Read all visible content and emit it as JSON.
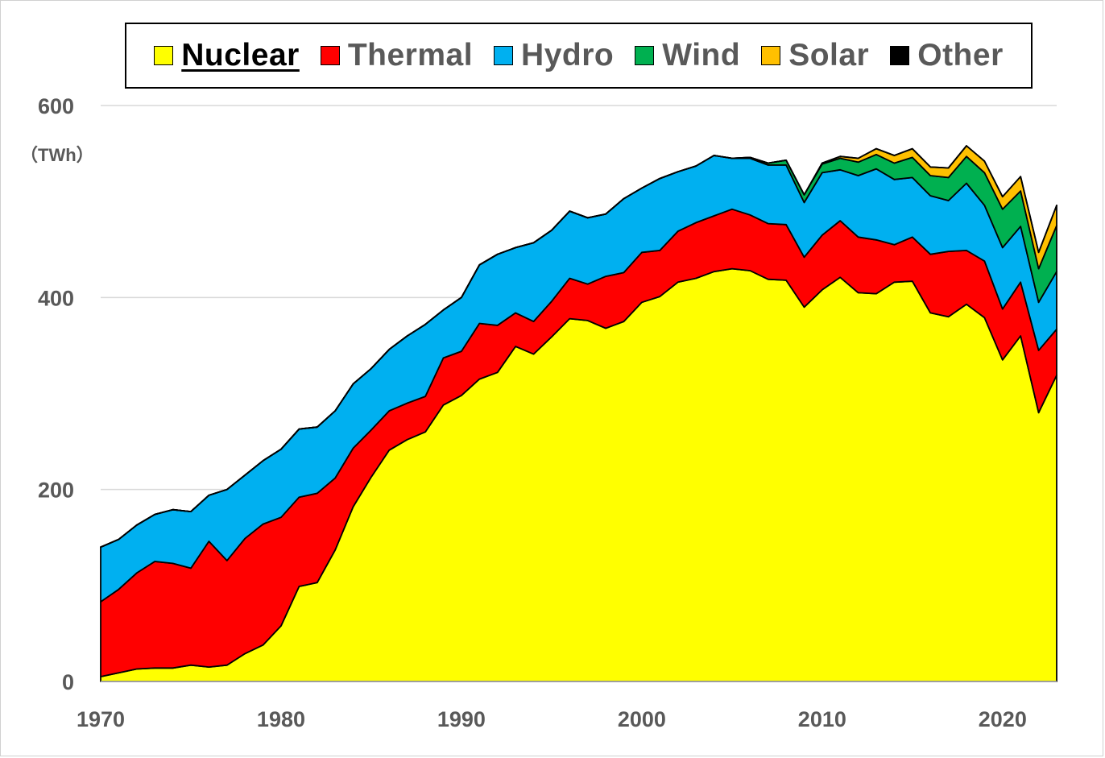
{
  "chart_data": {
    "type": "area",
    "stacked": true,
    "unit_label": "（TWh）",
    "ylim": [
      0,
      600
    ],
    "yticks": [
      0,
      200,
      400,
      600
    ],
    "xlim": [
      1970,
      2023
    ],
    "xticks": [
      1970,
      1980,
      1990,
      2000,
      2010,
      2020
    ],
    "grid": "horizontal",
    "legend_position": "top",
    "legend_active": "Nuclear",
    "x": [
      1970,
      1971,
      1972,
      1973,
      1974,
      1975,
      1976,
      1977,
      1978,
      1979,
      1980,
      1981,
      1982,
      1983,
      1984,
      1985,
      1986,
      1987,
      1988,
      1989,
      1990,
      1991,
      1992,
      1993,
      1994,
      1995,
      1996,
      1997,
      1998,
      1999,
      2000,
      2001,
      2002,
      2003,
      2004,
      2005,
      2006,
      2007,
      2008,
      2009,
      2010,
      2011,
      2012,
      2013,
      2014,
      2015,
      2016,
      2017,
      2018,
      2019,
      2020,
      2021,
      2022,
      2023
    ],
    "series": [
      {
        "name": "Nuclear",
        "color": "#FFFF00",
        "values": [
          5,
          9,
          13,
          14,
          14,
          17,
          15,
          17,
          29,
          38,
          58,
          99,
          103,
          137,
          182,
          213,
          241,
          252,
          260,
          288,
          298,
          315,
          322,
          349,
          341,
          359,
          378,
          376,
          368,
          375,
          395,
          401,
          416,
          420,
          427,
          430,
          428,
          419,
          418,
          390,
          408,
          421,
          405,
          404,
          416,
          417,
          384,
          380,
          393,
          379,
          335,
          360,
          280,
          319
        ]
      },
      {
        "name": "Thermal",
        "color": "#FF0000",
        "values": [
          78,
          87,
          100,
          111,
          109,
          101,
          131,
          109,
          120,
          126,
          113,
          93,
          93,
          75,
          61,
          49,
          41,
          38,
          37,
          49,
          46,
          58,
          49,
          35,
          34,
          37,
          42,
          38,
          54,
          51,
          52,
          48,
          53,
          58,
          58,
          62,
          58,
          58,
          58,
          52,
          57,
          59,
          58,
          56,
          39,
          46,
          61,
          68,
          56,
          59,
          53,
          56,
          65,
          48
        ]
      },
      {
        "name": "Hydro",
        "color": "#00B0F0",
        "values": [
          57,
          52,
          50,
          49,
          56,
          59,
          48,
          74,
          66,
          66,
          71,
          71,
          69,
          70,
          67,
          64,
          64,
          70,
          75,
          50,
          56,
          61,
          74,
          68,
          82,
          74,
          70,
          69,
          65,
          77,
          67,
          75,
          62,
          59,
          63,
          53,
          59,
          61,
          62,
          57,
          65,
          53,
          64,
          74,
          68,
          62,
          61,
          53,
          70,
          58,
          64,
          58,
          50,
          60
        ]
      },
      {
        "name": "Wind",
        "color": "#00B050",
        "values": [
          0,
          0,
          0,
          0,
          0,
          0,
          0,
          0,
          0,
          0,
          0,
          0,
          0,
          0,
          0,
          0,
          0,
          0,
          0,
          0,
          0,
          0,
          0,
          0,
          0,
          0,
          0,
          0,
          0,
          0,
          0,
          0,
          0,
          0,
          0,
          0,
          1,
          2,
          5,
          8,
          9,
          12,
          14,
          15,
          17,
          21,
          21,
          24,
          28,
          34,
          40,
          37,
          35,
          48
        ]
      },
      {
        "name": "Solar",
        "color": "#FFC000",
        "values": [
          0,
          0,
          0,
          0,
          0,
          0,
          0,
          0,
          0,
          0,
          0,
          0,
          0,
          0,
          0,
          0,
          0,
          0,
          0,
          0,
          0,
          0,
          0,
          0,
          0,
          0,
          0,
          0,
          0,
          0,
          0,
          0,
          0,
          0,
          0,
          0,
          0,
          0,
          0,
          0,
          1,
          2,
          4,
          6,
          8,
          9,
          9,
          10,
          11,
          12,
          13,
          15,
          17,
          21
        ]
      },
      {
        "name": "Other",
        "color": "#000000",
        "values": [
          0,
          0,
          0,
          0,
          0,
          0,
          0,
          0,
          0,
          0,
          0,
          0,
          0,
          0,
          0,
          0,
          0,
          0,
          0,
          0,
          0,
          0,
          0,
          0,
          0,
          0,
          0,
          0,
          0,
          0,
          0,
          0,
          0,
          0,
          0,
          0,
          0,
          0,
          0,
          0,
          0,
          0,
          0,
          0,
          0,
          0,
          0,
          0,
          0,
          0,
          0,
          0,
          0,
          0
        ]
      }
    ]
  }
}
